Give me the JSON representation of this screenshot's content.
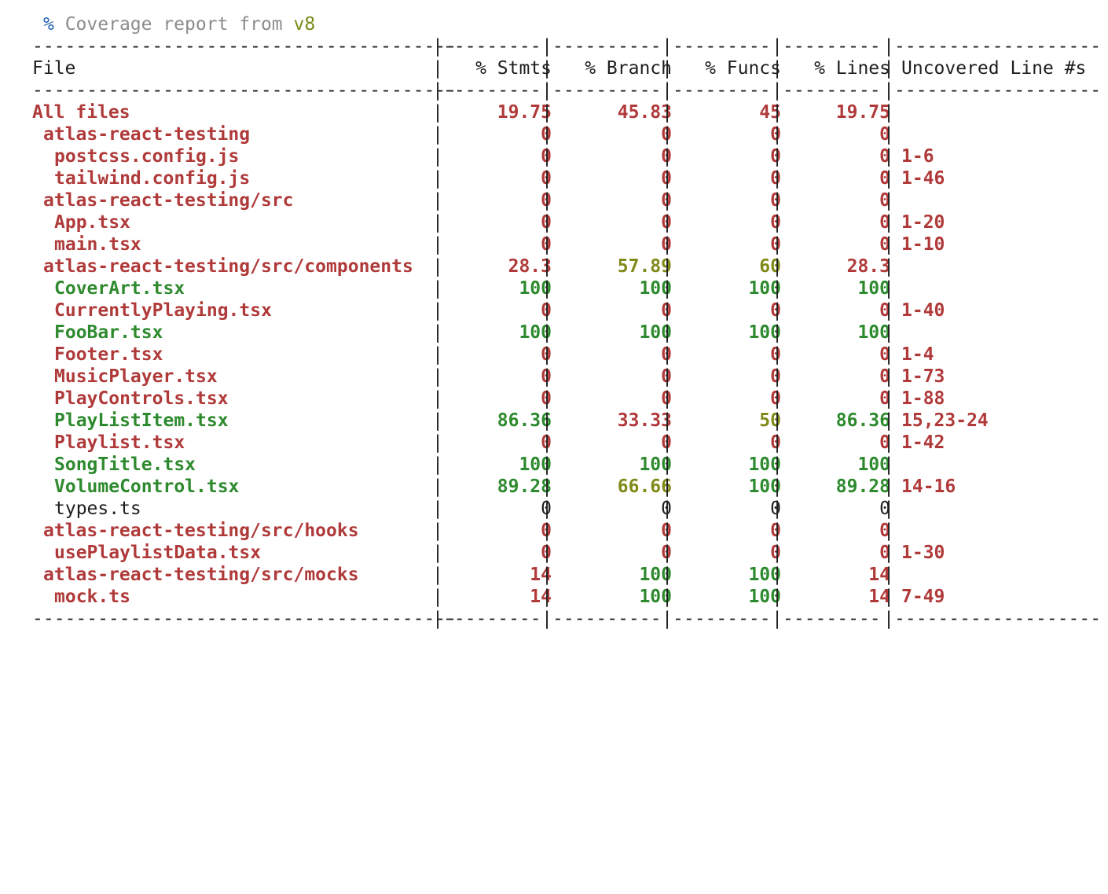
{
  "title": {
    "percent_sign": "%",
    "text": " Coverage report from ",
    "tool": "v8"
  },
  "separator": {
    "file": "---------------------------------------",
    "stmts": "---------",
    "branch": "----------",
    "funcs": "---------",
    "lines": "---------",
    "uncovered": "-------------------",
    "bar": "|"
  },
  "headers": {
    "file": "File",
    "stmts": "% Stmts",
    "branch": "% Branch",
    "funcs": "% Funcs",
    "lines": "% Lines",
    "uncovered": "Uncovered Line #s"
  },
  "colors": {
    "red": "#b03a3a",
    "green": "#2e8a2e",
    "olive": "#808a18",
    "plain": "#1e1e1e"
  },
  "rows": [
    {
      "file": "All files",
      "indent": 0,
      "stmts": "19.75",
      "branch": "45.83",
      "funcs": "45",
      "lines": "19.75",
      "uncovered": "",
      "c": [
        "red",
        "red",
        "red",
        "red",
        "red"
      ],
      "uc": "red"
    },
    {
      "file": "atlas-react-testing",
      "indent": 1,
      "stmts": "0",
      "branch": "0",
      "funcs": "0",
      "lines": "0",
      "uncovered": "",
      "c": [
        "red",
        "red",
        "red",
        "red",
        "red"
      ],
      "uc": "red"
    },
    {
      "file": "postcss.config.js",
      "indent": 2,
      "stmts": "0",
      "branch": "0",
      "funcs": "0",
      "lines": "0",
      "uncovered": "1-6",
      "c": [
        "red",
        "red",
        "red",
        "red",
        "red"
      ],
      "uc": "red"
    },
    {
      "file": "tailwind.config.js",
      "indent": 2,
      "stmts": "0",
      "branch": "0",
      "funcs": "0",
      "lines": "0",
      "uncovered": "1-46",
      "c": [
        "red",
        "red",
        "red",
        "red",
        "red"
      ],
      "uc": "red"
    },
    {
      "file": "atlas-react-testing/src",
      "indent": 1,
      "stmts": "0",
      "branch": "0",
      "funcs": "0",
      "lines": "0",
      "uncovered": "",
      "c": [
        "red",
        "red",
        "red",
        "red",
        "red"
      ],
      "uc": "red"
    },
    {
      "file": "App.tsx",
      "indent": 2,
      "stmts": "0",
      "branch": "0",
      "funcs": "0",
      "lines": "0",
      "uncovered": "1-20",
      "c": [
        "red",
        "red",
        "red",
        "red",
        "red"
      ],
      "uc": "red"
    },
    {
      "file": "main.tsx",
      "indent": 2,
      "stmts": "0",
      "branch": "0",
      "funcs": "0",
      "lines": "0",
      "uncovered": "1-10",
      "c": [
        "red",
        "red",
        "red",
        "red",
        "red"
      ],
      "uc": "red"
    },
    {
      "file": "atlas-react-testing/src/components",
      "indent": 1,
      "stmts": "28.3",
      "branch": "57.89",
      "funcs": "60",
      "lines": "28.3",
      "uncovered": "",
      "c": [
        "red",
        "red",
        "olive",
        "olive",
        "red"
      ],
      "uc": "red"
    },
    {
      "file": "CoverArt.tsx",
      "indent": 2,
      "stmts": "100",
      "branch": "100",
      "funcs": "100",
      "lines": "100",
      "uncovered": "",
      "c": [
        "green",
        "green",
        "green",
        "green",
        "green"
      ],
      "uc": "green"
    },
    {
      "file": "CurrentlyPlaying.tsx",
      "indent": 2,
      "stmts": "0",
      "branch": "0",
      "funcs": "0",
      "lines": "0",
      "uncovered": "1-40",
      "c": [
        "red",
        "red",
        "red",
        "red",
        "red"
      ],
      "uc": "red"
    },
    {
      "file": "FooBar.tsx",
      "indent": 2,
      "stmts": "100",
      "branch": "100",
      "funcs": "100",
      "lines": "100",
      "uncovered": "",
      "c": [
        "green",
        "green",
        "green",
        "green",
        "green"
      ],
      "uc": "green"
    },
    {
      "file": "Footer.tsx",
      "indent": 2,
      "stmts": "0",
      "branch": "0",
      "funcs": "0",
      "lines": "0",
      "uncovered": "1-4",
      "c": [
        "red",
        "red",
        "red",
        "red",
        "red"
      ],
      "uc": "red"
    },
    {
      "file": "MusicPlayer.tsx",
      "indent": 2,
      "stmts": "0",
      "branch": "0",
      "funcs": "0",
      "lines": "0",
      "uncovered": "1-73",
      "c": [
        "red",
        "red",
        "red",
        "red",
        "red"
      ],
      "uc": "red"
    },
    {
      "file": "PlayControls.tsx",
      "indent": 2,
      "stmts": "0",
      "branch": "0",
      "funcs": "0",
      "lines": "0",
      "uncovered": "1-88",
      "c": [
        "red",
        "red",
        "red",
        "red",
        "red"
      ],
      "uc": "red"
    },
    {
      "file": "PlayListItem.tsx",
      "indent": 2,
      "stmts": "86.36",
      "branch": "33.33",
      "funcs": "50",
      "lines": "86.36",
      "uncovered": "15,23-24",
      "c": [
        "green",
        "green",
        "red",
        "olive",
        "green"
      ],
      "uc": "red"
    },
    {
      "file": "Playlist.tsx",
      "indent": 2,
      "stmts": "0",
      "branch": "0",
      "funcs": "0",
      "lines": "0",
      "uncovered": "1-42",
      "c": [
        "red",
        "red",
        "red",
        "red",
        "red"
      ],
      "uc": "red"
    },
    {
      "file": "SongTitle.tsx",
      "indent": 2,
      "stmts": "100",
      "branch": "100",
      "funcs": "100",
      "lines": "100",
      "uncovered": "",
      "c": [
        "green",
        "green",
        "green",
        "green",
        "green"
      ],
      "uc": "green"
    },
    {
      "file": "VolumeControl.tsx",
      "indent": 2,
      "stmts": "89.28",
      "branch": "66.66",
      "funcs": "100",
      "lines": "89.28",
      "uncovered": "14-16",
      "c": [
        "green",
        "green",
        "olive",
        "green",
        "green"
      ],
      "uc": "red"
    },
    {
      "file": "types.ts",
      "indent": 2,
      "stmts": "0",
      "branch": "0",
      "funcs": "0",
      "lines": "0",
      "uncovered": "",
      "c": [
        "plain",
        "plain",
        "plain",
        "plain",
        "plain"
      ],
      "uc": "plain"
    },
    {
      "file": "atlas-react-testing/src/hooks",
      "indent": 1,
      "stmts": "0",
      "branch": "0",
      "funcs": "0",
      "lines": "0",
      "uncovered": "",
      "c": [
        "red",
        "red",
        "red",
        "red",
        "red"
      ],
      "uc": "red"
    },
    {
      "file": "usePlaylistData.tsx",
      "indent": 2,
      "stmts": "0",
      "branch": "0",
      "funcs": "0",
      "lines": "0",
      "uncovered": "1-30",
      "c": [
        "red",
        "red",
        "red",
        "red",
        "red"
      ],
      "uc": "red"
    },
    {
      "file": "atlas-react-testing/src/mocks",
      "indent": 1,
      "stmts": "14",
      "branch": "100",
      "funcs": "100",
      "lines": "14",
      "uncovered": "",
      "c": [
        "red",
        "red",
        "green",
        "green",
        "red"
      ],
      "uc": "red"
    },
    {
      "file": "mock.ts",
      "indent": 2,
      "stmts": "14",
      "branch": "100",
      "funcs": "100",
      "lines": "14",
      "uncovered": "7-49",
      "c": [
        "red",
        "red",
        "green",
        "green",
        "red"
      ],
      "uc": "red"
    }
  ]
}
